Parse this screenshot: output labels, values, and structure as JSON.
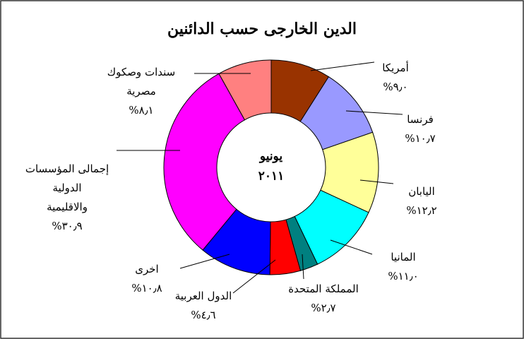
{
  "chart_data": {
    "type": "donut",
    "title": "الدين الخارجى حسب الدائنين",
    "center_label": [
      "يونيو",
      "٢٠١١"
    ],
    "categories": [
      [
        "أمريكا"
      ],
      [
        "فرنسا"
      ],
      [
        "اليابان"
      ],
      [
        "المانيا"
      ],
      [
        "المملكة المتحدة"
      ],
      [
        "الدول العربية"
      ],
      [
        "اخرى"
      ],
      [
        "إجمالى المؤسسات",
        "الدولية",
        "والاقليمية"
      ],
      [
        "سندات وصكوك",
        "مصرية"
      ]
    ],
    "values": [
      9.0,
      10.7,
      12.2,
      11.0,
      2.7,
      4.6,
      10.8,
      30.9,
      8.1
    ],
    "value_labels": [
      "%٩٫٠",
      "%١٠٫٧",
      "%١٢٫٢",
      "%١١٫٠",
      "%٢٫٧",
      "%٤٫٦",
      "%١٠٫٨",
      "%٣٠٫٩",
      "%٨٫١"
    ],
    "colors": [
      "#993300",
      "#9999ff",
      "#ffff99",
      "#00ffff",
      "#008080",
      "#ff0000",
      "#0000ff",
      "#ff00ff",
      "#ff8080"
    ]
  }
}
